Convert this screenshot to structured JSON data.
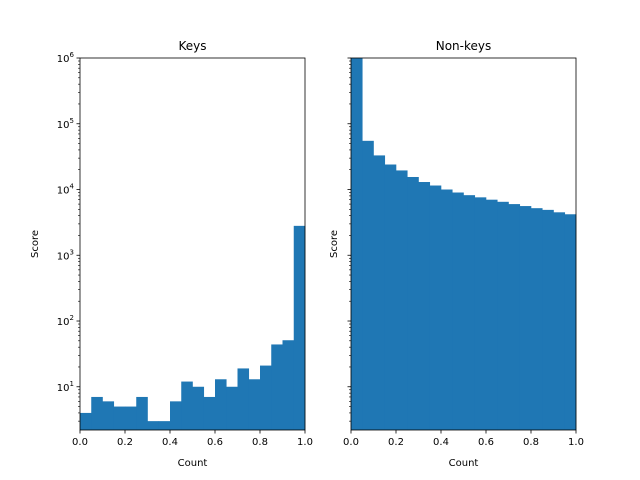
{
  "chart_data": [
    {
      "type": "bar",
      "title": "Keys",
      "xlabel": "Count",
      "ylabel": "Score",
      "xlim": [
        0,
        1
      ],
      "ylim": [
        2.2,
        1000000
      ],
      "yscale": "log",
      "grid": false,
      "color": "#1f77b4",
      "bin_edges": [
        0,
        0.05,
        0.1,
        0.15,
        0.2,
        0.25,
        0.3,
        0.35,
        0.4,
        0.45,
        0.5,
        0.55,
        0.6,
        0.65,
        0.7,
        0.75,
        0.8,
        0.85,
        0.9,
        0.95,
        1.0
      ],
      "values": [
        4,
        7,
        6,
        5,
        5,
        7,
        3,
        3,
        6,
        12,
        10,
        7,
        13,
        10,
        19,
        13,
        21,
        44,
        51,
        2800
      ],
      "xticks": [
        "0.0",
        "0.2",
        "0.4",
        "0.6",
        "0.8",
        "1.0"
      ],
      "xtick_values": [
        0,
        0.2,
        0.4,
        0.6,
        0.8,
        1.0
      ],
      "yticks": [
        {
          "base": "10",
          "exp": "1",
          "value": 10
        },
        {
          "base": "10",
          "exp": "2",
          "value": 100
        },
        {
          "base": "10",
          "exp": "3",
          "value": 1000
        },
        {
          "base": "10",
          "exp": "4",
          "value": 10000
        },
        {
          "base": "10",
          "exp": "5",
          "value": 100000
        },
        {
          "base": "10",
          "exp": "6",
          "value": 1000000
        }
      ]
    },
    {
      "type": "bar",
      "title": "Non-keys",
      "xlabel": "Count",
      "ylabel": "Score",
      "xlim": [
        0,
        1
      ],
      "ylim": [
        2.2,
        1000000
      ],
      "yscale": "log",
      "grid": false,
      "color": "#1f77b4",
      "bin_edges": [
        0,
        0.05,
        0.1,
        0.15,
        0.2,
        0.25,
        0.3,
        0.35,
        0.4,
        0.45,
        0.5,
        0.55,
        0.6,
        0.65,
        0.7,
        0.75,
        0.8,
        0.85,
        0.9,
        0.95,
        1.0
      ],
      "values": [
        1000000,
        55000,
        33000,
        24000,
        19500,
        15500,
        13000,
        11500,
        10000,
        9000,
        8200,
        7600,
        7000,
        6500,
        6000,
        5600,
        5200,
        4900,
        4500,
        4200
      ],
      "xticks": [
        "0.0",
        "0.2",
        "0.4",
        "0.6",
        "0.8",
        "1.0"
      ],
      "xtick_values": [
        0,
        0.2,
        0.4,
        0.6,
        0.8,
        1.0
      ],
      "yticks": []
    }
  ]
}
